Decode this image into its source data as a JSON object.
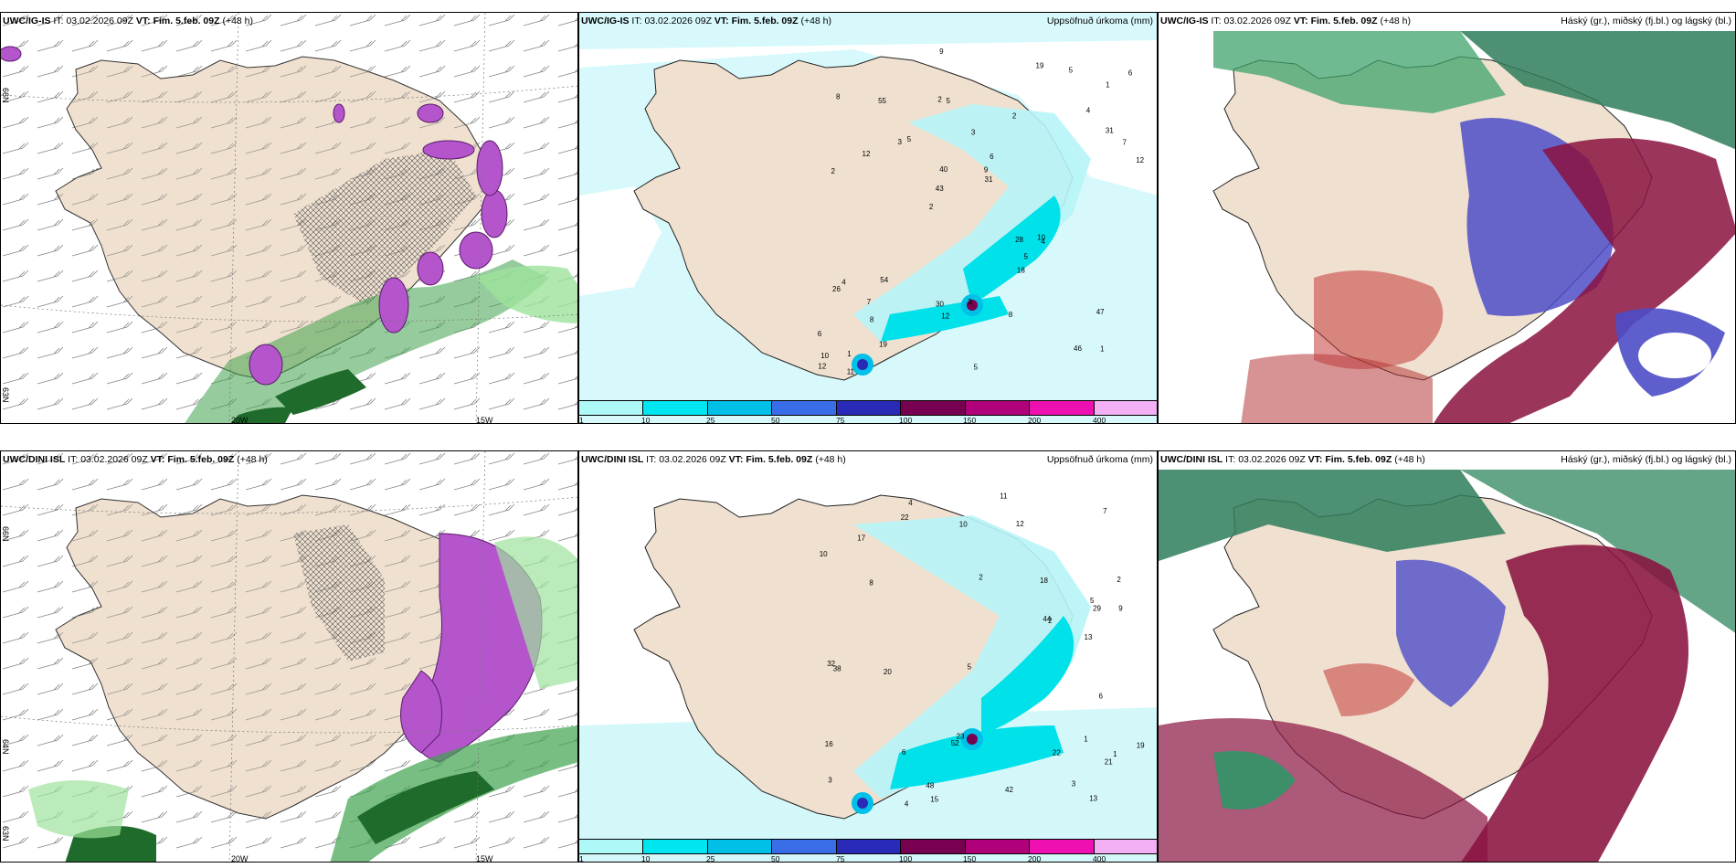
{
  "panels": {
    "top_left": {
      "model": "UWC/IG-IS",
      "it_label": "IT:",
      "it": "03.02.2026 09Z",
      "vt_label": "VT:",
      "vt": "Fim. 5.feb. 09Z",
      "lead": "(+48 h)",
      "right": ""
    },
    "top_mid": {
      "model": "UWC/IG-IS",
      "it_label": "IT:",
      "it": "03.02.2026 09Z",
      "vt_label": "VT:",
      "vt": "Fim. 5.feb. 09Z",
      "lead": "(+48 h)",
      "right": "Uppsöfnuð úrkoma (mm)"
    },
    "top_right": {
      "model": "UWC/IG-IS",
      "it_label": "IT:",
      "it": "03.02.2026 09Z",
      "vt_label": "VT:",
      "vt": "Fim. 5.feb. 09Z",
      "lead": "(+48 h)",
      "right": "Háský (gr.), miðský (fj.bl.) og lágský (bl.)"
    },
    "bot_left": {
      "model": "UWC/DINI ISL",
      "it_label": "IT:",
      "it": "03.02.2026 09Z",
      "vt_label": "VT:",
      "vt": "Fim. 5.feb. 09Z",
      "lead": "(+48",
      "lead2": "h)",
      "right": ""
    },
    "bot_mid": {
      "model": "UWC/DINI ISL",
      "it_label": "IT:",
      "it": "03.02.2026 09Z",
      "vt_label": "VT:",
      "vt": "Fim. 5.feb. 09Z",
      "lead": "(+48 h)",
      "right": "Uppsöfnuð úrkoma (mm)"
    },
    "bot_right": {
      "model": "UWC/DINI ISL",
      "it_label": "IT:",
      "it": "03.02.2026 09Z",
      "vt_label": "VT:",
      "vt": "Fim. 5.feb. 09Z",
      "lead": "(+48 h)",
      "right": "Háský (gr.), miðský (fj.bl.) og lágský (bl.)"
    }
  },
  "axis_labels": {
    "lon_20": "20W",
    "lon_15": "15W",
    "lat_66": "66N",
    "lat_64": "64N",
    "lat_63": "63N"
  },
  "colorbar": {
    "ticks": [
      "1",
      "10",
      "25",
      "50",
      "75",
      "100",
      "150",
      "200",
      "400"
    ],
    "colors": [
      "#aef8f8",
      "#00e6f0",
      "#00c0e8",
      "#3a6ee8",
      "#2a2ab8",
      "#780050",
      "#b0007a",
      "#ee10b0",
      "#f4b0f4"
    ]
  },
  "colors": {
    "land": "#efe0cf",
    "sea": "#ffffff",
    "precip_light": "#b7f4f7",
    "precip_mid": "#00e1ea",
    "snow": "#b455cc",
    "rain_green": "#3fa34d",
    "cloud_high": "#7a7a7a",
    "cloud_mid": "#4d4dc8",
    "cloud_low": "#8a1240"
  },
  "precip_values_top": [
    "1",
    "2",
    "1",
    "2",
    "2",
    "1",
    "2",
    "3",
    "4",
    "5",
    "6",
    "8",
    "5",
    "6",
    "4",
    "8",
    "9",
    "12",
    "28",
    "31",
    "43",
    "30",
    "40",
    "55",
    "19",
    "54",
    "46",
    "47",
    "10",
    "5",
    "3",
    "12",
    "18",
    "19",
    "7",
    "9",
    "10",
    "12",
    "31",
    "26",
    "4",
    "6",
    "5",
    "8",
    "7",
    "11",
    "12",
    "3",
    "5"
  ],
  "precip_values_bot": [
    "1",
    "2",
    "1",
    "2",
    "3",
    "4",
    "5",
    "6",
    "7",
    "8",
    "9",
    "10",
    "13",
    "15",
    "16",
    "17",
    "21",
    "22",
    "23",
    "29",
    "32",
    "38",
    "42",
    "44",
    "48",
    "52",
    "11",
    "12",
    "18",
    "19",
    "20",
    "22",
    "4",
    "5",
    "6",
    "3",
    "2",
    "10",
    "13"
  ]
}
